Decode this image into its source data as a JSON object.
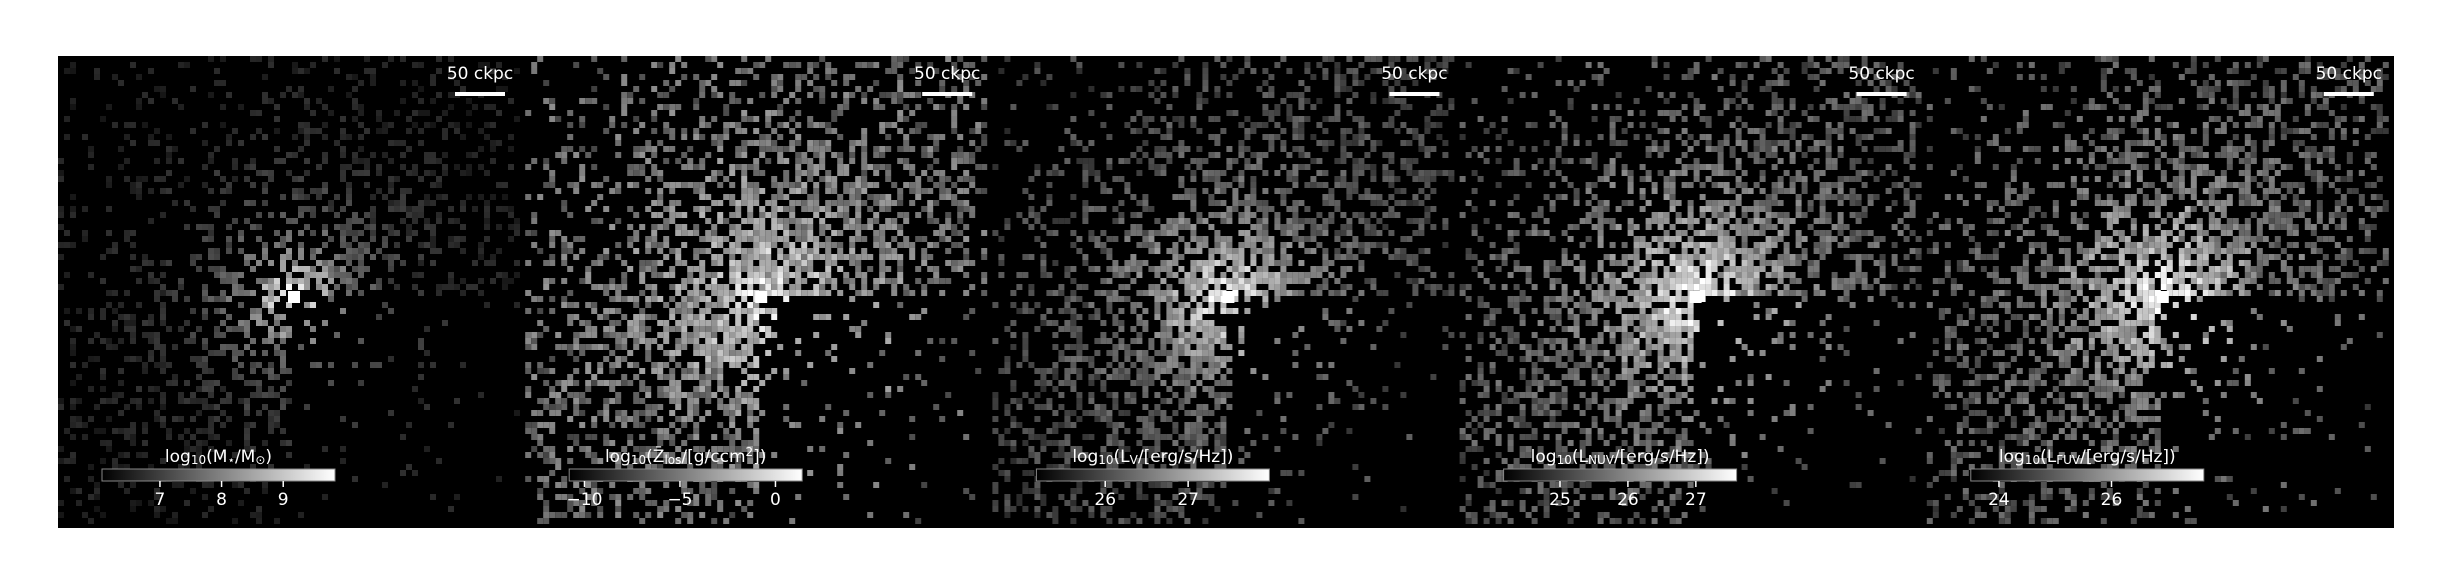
{
  "panels": [
    {
      "scalebar": "50 ckpc",
      "colorbar": {
        "label": [
          {
            "text": "log"
          },
          {
            "text": "10",
            "sub": true
          },
          {
            "text": "(M"
          },
          {
            "text": "⋆",
            "sub": true
          },
          {
            "text": "/M"
          },
          {
            "text": "⊙",
            "sub": true
          },
          {
            "text": ")"
          }
        ],
        "lim": [
          6.06,
          9.84
        ],
        "ticks": [
          7,
          8,
          9
        ]
      }
    },
    {
      "scalebar": "50 ckpc",
      "colorbar": {
        "label": [
          {
            "text": "log"
          },
          {
            "text": "10",
            "sub": true
          },
          {
            "text": "(Z̄"
          },
          {
            "text": "los",
            "sub": true
          },
          {
            "text": "/[g/ccm"
          },
          {
            "text": "2",
            "sup": true
          },
          {
            "text": "])"
          }
        ],
        "lim": [
          -10.8,
          1.4
        ],
        "ticks": [
          {
            "value": -10,
            "label": "−10"
          },
          {
            "value": -5,
            "label": "−5"
          },
          0
        ]
      }
    },
    {
      "scalebar": "50 ckpc",
      "colorbar": {
        "label": [
          {
            "text": "log"
          },
          {
            "text": "10",
            "sub": true
          },
          {
            "text": "(L"
          },
          {
            "text": "V",
            "sub": true
          },
          {
            "text": "/[erg/s/Hz])"
          }
        ],
        "lim": [
          25.17,
          27.98
        ],
        "ticks": [
          26,
          27
        ]
      }
    },
    {
      "scalebar": "50 ckpc",
      "colorbar": {
        "label": [
          {
            "text": "log"
          },
          {
            "text": "10",
            "sub": true
          },
          {
            "text": "(L"
          },
          {
            "text": "NUV",
            "sub": true
          },
          {
            "text": "/[erg/s/Hz])"
          }
        ],
        "lim": [
          24.17,
          27.6
        ],
        "ticks": [
          25,
          26,
          27
        ]
      }
    },
    {
      "scalebar": "50 ckpc",
      "colorbar": {
        "label": [
          {
            "text": "log"
          },
          {
            "text": "10",
            "sub": true
          },
          {
            "text": "(L"
          },
          {
            "text": "FUV",
            "sub": true
          },
          {
            "text": "/[erg/s/Hz])"
          }
        ],
        "lim": [
          23.5,
          27.64
        ],
        "ticks": [
          24,
          26
        ]
      }
    }
  ]
}
